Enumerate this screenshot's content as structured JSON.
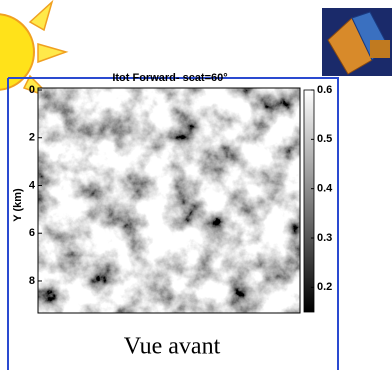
{
  "chart_data": {
    "type": "heatmap",
    "title": "Itot Forward- scat=60°",
    "y_label": "Y (km)",
    "ylim": [
      0,
      9.3
    ],
    "yticks": [
      0,
      2,
      4,
      6,
      8
    ],
    "clim": [
      0.15,
      0.6
    ],
    "cticks": [
      0.6,
      0.5,
      0.4,
      0.3,
      0.2
    ],
    "caption": "Vue avant"
  }
}
